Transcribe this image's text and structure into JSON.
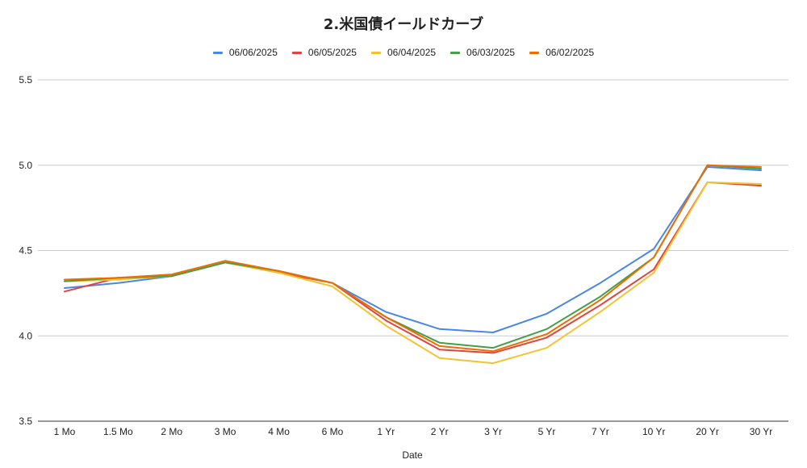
{
  "chart_data": {
    "type": "line",
    "title": "2.米国債イールドカーブ",
    "xlabel": "Date",
    "ylabel": "",
    "ylim": [
      3.5,
      5.5
    ],
    "yticks": [
      "3.5",
      "4.0",
      "4.5",
      "5.0",
      "5.5"
    ],
    "grid": true,
    "legend_position": "top",
    "categories": [
      "1 Mo",
      "1.5 Mo",
      "2 Mo",
      "3 Mo",
      "4 Mo",
      "6 Mo",
      "1 Yr",
      "2 Yr",
      "3 Yr",
      "5 Yr",
      "7 Yr",
      "10 Yr",
      "20 Yr",
      "30 Yr"
    ],
    "series": [
      {
        "name": "06/06/2025",
        "color": "#4a86e8",
        "values": [
          4.28,
          4.31,
          4.35,
          4.43,
          4.38,
          4.31,
          4.14,
          4.04,
          4.02,
          4.13,
          4.31,
          4.51,
          4.99,
          4.97
        ]
      },
      {
        "name": "06/05/2025",
        "color": "#e0443e",
        "values": [
          4.26,
          4.34,
          4.35,
          4.43,
          4.37,
          4.31,
          4.09,
          3.92,
          3.9,
          3.99,
          4.18,
          4.39,
          4.9,
          4.88
        ]
      },
      {
        "name": "06/04/2025",
        "color": "#f1c232",
        "values": [
          4.32,
          4.33,
          4.35,
          4.43,
          4.37,
          4.29,
          4.06,
          3.87,
          3.84,
          3.93,
          4.14,
          4.37,
          4.9,
          4.89
        ]
      },
      {
        "name": "06/03/2025",
        "color": "#43a047",
        "values": [
          4.32,
          4.34,
          4.35,
          4.43,
          4.38,
          4.31,
          4.11,
          3.96,
          3.93,
          4.04,
          4.23,
          4.46,
          5.0,
          4.98
        ]
      },
      {
        "name": "06/02/2025",
        "color": "#ef6c00",
        "values": [
          4.33,
          4.34,
          4.36,
          4.44,
          4.38,
          4.31,
          4.11,
          3.94,
          3.91,
          4.01,
          4.21,
          4.46,
          5.0,
          4.99
        ]
      }
    ]
  }
}
